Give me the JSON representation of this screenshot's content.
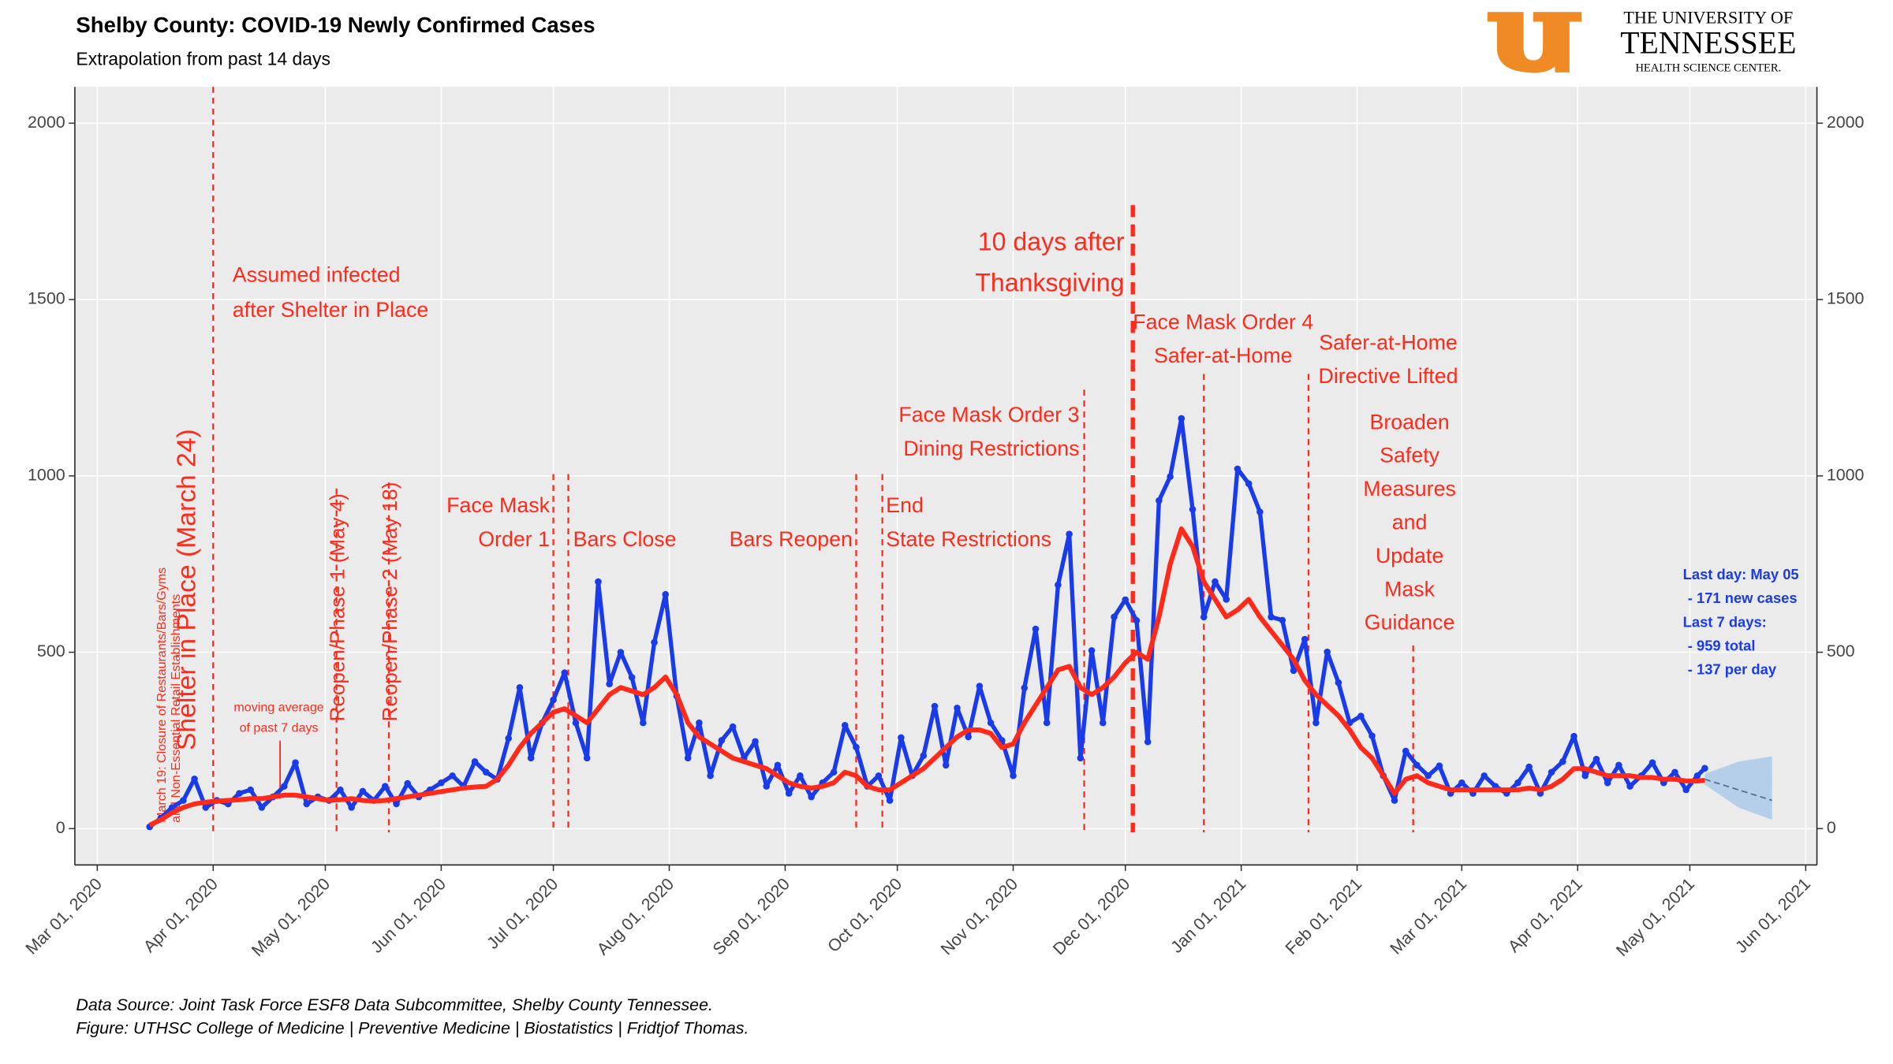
{
  "chart_data": {
    "type": "line",
    "title": "Shelby County: COVID-19 Newly Confirmed Cases",
    "subtitle": "Extrapolation from past 14 days",
    "footnote": [
      "Data Source: Joint Task Force ESF8 Data Subcommittee, Shelby County Tennessee.",
      "Figure: UTHSC College of Medicine | Preventive Medicine | Biostatistics | Fridtjof Thomas."
    ],
    "logo": [
      "THE UNIVERSITY OF",
      "TENNESSEE",
      "HEALTH SCIENCE CENTER."
    ],
    "xlim": [
      "2020-02-24",
      "2021-06-04"
    ],
    "xticks": [
      {
        "value": "2020-03-01",
        "label": "Mar 01, 2020"
      },
      {
        "value": "2020-04-01",
        "label": "Apr 01, 2020"
      },
      {
        "value": "2020-05-01",
        "label": "May 01, 2020"
      },
      {
        "value": "2020-06-01",
        "label": "Jun 01, 2020"
      },
      {
        "value": "2020-07-01",
        "label": "Jul 01, 2020"
      },
      {
        "value": "2020-08-01",
        "label": "Aug 01, 2020"
      },
      {
        "value": "2020-09-01",
        "label": "Sep 01, 2020"
      },
      {
        "value": "2020-10-01",
        "label": "Oct 01, 2020"
      },
      {
        "value": "2020-11-01",
        "label": "Nov 01, 2020"
      },
      {
        "value": "2020-12-01",
        "label": "Dec 01, 2020"
      },
      {
        "value": "2021-01-01",
        "label": "Jan 01, 2021"
      },
      {
        "value": "2021-02-01",
        "label": "Feb 01, 2021"
      },
      {
        "value": "2021-03-01",
        "label": "Mar 01, 2021"
      },
      {
        "value": "2021-04-01",
        "label": "Apr 01, 2021"
      },
      {
        "value": "2021-05-01",
        "label": "May 01, 2021"
      },
      {
        "value": "2021-06-01",
        "label": "Jun 01, 2021"
      }
    ],
    "ylim": [
      -103,
      2103
    ],
    "yticks": [
      0,
      500,
      1000,
      1500,
      2000
    ],
    "grid": true,
    "x": [
      "2020-03-15",
      "2020-03-18",
      "2020-03-21",
      "2020-03-24",
      "2020-03-27",
      "2020-03-30",
      "2020-04-02",
      "2020-04-05",
      "2020-04-08",
      "2020-04-11",
      "2020-04-14",
      "2020-04-17",
      "2020-04-20",
      "2020-04-23",
      "2020-04-26",
      "2020-04-29",
      "2020-05-02",
      "2020-05-05",
      "2020-05-08",
      "2020-05-11",
      "2020-05-14",
      "2020-05-17",
      "2020-05-20",
      "2020-05-23",
      "2020-05-26",
      "2020-05-29",
      "2020-06-01",
      "2020-06-04",
      "2020-06-07",
      "2020-06-10",
      "2020-06-13",
      "2020-06-16",
      "2020-06-19",
      "2020-06-22",
      "2020-06-25",
      "2020-06-28",
      "2020-07-01",
      "2020-07-04",
      "2020-07-07",
      "2020-07-10",
      "2020-07-13",
      "2020-07-16",
      "2020-07-19",
      "2020-07-22",
      "2020-07-25",
      "2020-07-28",
      "2020-07-31",
      "2020-08-03",
      "2020-08-06",
      "2020-08-09",
      "2020-08-12",
      "2020-08-15",
      "2020-08-18",
      "2020-08-21",
      "2020-08-24",
      "2020-08-27",
      "2020-08-30",
      "2020-09-02",
      "2020-09-05",
      "2020-09-08",
      "2020-09-11",
      "2020-09-14",
      "2020-09-17",
      "2020-09-20",
      "2020-09-23",
      "2020-09-26",
      "2020-09-29",
      "2020-10-02",
      "2020-10-05",
      "2020-10-08",
      "2020-10-11",
      "2020-10-14",
      "2020-10-17",
      "2020-10-20",
      "2020-10-23",
      "2020-10-26",
      "2020-10-29",
      "2020-11-01",
      "2020-11-04",
      "2020-11-07",
      "2020-11-10",
      "2020-11-13",
      "2020-11-16",
      "2020-11-19",
      "2020-11-22",
      "2020-11-25",
      "2020-11-28",
      "2020-12-01",
      "2020-12-04",
      "2020-12-07",
      "2020-12-10",
      "2020-12-13",
      "2020-12-16",
      "2020-12-19",
      "2020-12-22",
      "2020-12-25",
      "2020-12-28",
      "2020-12-31",
      "2021-01-03",
      "2021-01-06",
      "2021-01-09",
      "2021-01-12",
      "2021-01-15",
      "2021-01-18",
      "2021-01-21",
      "2021-01-24",
      "2021-01-27",
      "2021-01-30",
      "2021-02-02",
      "2021-02-05",
      "2021-02-08",
      "2021-02-11",
      "2021-02-14",
      "2021-02-17",
      "2021-02-20",
      "2021-02-23",
      "2021-02-26",
      "2021-03-01",
      "2021-03-04",
      "2021-03-07",
      "2021-03-10",
      "2021-03-13",
      "2021-03-16",
      "2021-03-19",
      "2021-03-22",
      "2021-03-25",
      "2021-03-28",
      "2021-03-31",
      "2021-04-03",
      "2021-04-06",
      "2021-04-09",
      "2021-04-12",
      "2021-04-15",
      "2021-04-18",
      "2021-04-21",
      "2021-04-24",
      "2021-04-27",
      "2021-04-30",
      "2021-05-03",
      "2021-05-05"
    ],
    "series": [
      {
        "name": "Newly confirmed cases",
        "color": "#1a3be8",
        "values": [
          5,
          30,
          60,
          80,
          141,
          60,
          80,
          70,
          100,
          110,
          60,
          90,
          120,
          187,
          70,
          90,
          80,
          110,
          60,
          106,
          80,
          120,
          70,
          128,
          90,
          110,
          130,
          150,
          120,
          190,
          160,
          140,
          256,
          400,
          200,
          300,
          365,
          442,
          300,
          200,
          700,
          410,
          500,
          429,
          300,
          528,
          664,
          376,
          200,
          300,
          150,
          250,
          289,
          200,
          247,
          120,
          180,
          100,
          150,
          90,
          130,
          160,
          293,
          231,
          120,
          150,
          80,
          258,
          150,
          207,
          347,
          180,
          342,
          260,
          404,
          300,
          250,
          150,
          399,
          566,
          300,
          691,
          835,
          200,
          505,
          300,
          600,
          649,
          590,
          246,
          930,
          998,
          1163,
          905,
          600,
          700,
          650,
          1020,
          978,
          898,
          600,
          591,
          448,
          537,
          300,
          501,
          414,
          300,
          319,
          263,
          150,
          80,
          220,
          180,
          150,
          178,
          100,
          130,
          100,
          150,
          120,
          100,
          130,
          175,
          100,
          160,
          190,
          262,
          150,
          197,
          130,
          180,
          120,
          150,
          187,
          130,
          160,
          110,
          150,
          171
        ]
      },
      {
        "name": "Moving average",
        "color": "#ff2a1a",
        "values": [
          10,
          25,
          45,
          60,
          70,
          75,
          78,
          80,
          82,
          85,
          85,
          90,
          95,
          95,
          90,
          85,
          80,
          82,
          85,
          80,
          78,
          80,
          85,
          90,
          95,
          100,
          105,
          110,
          115,
          118,
          120,
          140,
          180,
          230,
          270,
          300,
          330,
          340,
          320,
          300,
          340,
          380,
          400,
          390,
          380,
          400,
          430,
          380,
          300,
          260,
          240,
          220,
          200,
          190,
          180,
          170,
          150,
          130,
          120,
          115,
          120,
          130,
          160,
          150,
          120,
          110,
          110,
          130,
          150,
          170,
          200,
          230,
          260,
          280,
          280,
          270,
          230,
          240,
          300,
          350,
          400,
          450,
          460,
          400,
          380,
          400,
          430,
          470,
          500,
          480,
          600,
          750,
          850,
          800,
          700,
          650,
          600,
          620,
          650,
          600,
          560,
          520,
          480,
          420,
          380,
          350,
          320,
          280,
          230,
          200,
          150,
          100,
          140,
          150,
          130,
          120,
          110,
          110,
          110,
          110,
          110,
          110,
          110,
          115,
          110,
          120,
          140,
          170,
          170,
          160,
          150,
          150,
          150,
          145,
          145,
          140,
          140,
          135,
          135,
          137
        ]
      }
    ],
    "forecast": {
      "color": "#9ec3ea",
      "x": [
        "2021-05-05",
        "2021-05-14",
        "2021-05-23"
      ],
      "values": [
        140,
        110,
        80
      ],
      "lower": [
        125,
        60,
        25
      ],
      "upper": [
        155,
        190,
        205
      ]
    },
    "events": [
      {
        "date": "2020-03-19",
        "text": [
          "March 19: Closure of Restaurants/Bars/Gyms",
          "and Non-Essential Retail Establishments"
        ]
      },
      {
        "date": "2020-03-24",
        "text": [
          "Shelter in Place (March 24)"
        ]
      },
      {
        "date": "2020-04-01",
        "text": [
          "Assumed infected",
          "after Shelter in Place"
        ]
      },
      {
        "date": "2020-05-04",
        "text": [
          "Reopen/Phase 1 (May 4)"
        ]
      },
      {
        "date": "2020-05-18",
        "text": [
          "Reopen/Phase 2 (May 18)"
        ]
      },
      {
        "date": "2020-07-01",
        "text": [
          "Face Mask",
          "Order 1"
        ]
      },
      {
        "date": "2020-07-05",
        "text": [
          "Bars Close"
        ]
      },
      {
        "date": "2020-09-20",
        "text": [
          "Bars Reopen"
        ]
      },
      {
        "date": "2020-09-27",
        "text": [
          "End",
          "State Restrictions"
        ]
      },
      {
        "date": "2020-11-20",
        "text": [
          "Face Mask Order 3",
          "Dining Restrictions"
        ]
      },
      {
        "date": "2020-12-03",
        "text": [
          "10 days after",
          "Thanksgiving"
        ]
      },
      {
        "date": "2020-12-22",
        "text": [
          "Face Mask Order 4",
          "Safer-at-Home"
        ]
      },
      {
        "date": "2021-01-19",
        "text": [
          "Safer-at-Home",
          "Directive Lifted"
        ]
      },
      {
        "date": "2021-02-16",
        "text": [
          "Broaden",
          "Safety",
          "Measures",
          "and",
          "Update",
          "Mask",
          "Guidance"
        ]
      }
    ],
    "event_color": "#ff2a1a",
    "ma_note": [
      "moving average",
      "of past 7 days"
    ],
    "side_note": [
      "Last day: May 05",
      "- 171 new cases",
      "Last 7 days:",
      "- 959 total",
      "- 137 per day"
    ]
  }
}
